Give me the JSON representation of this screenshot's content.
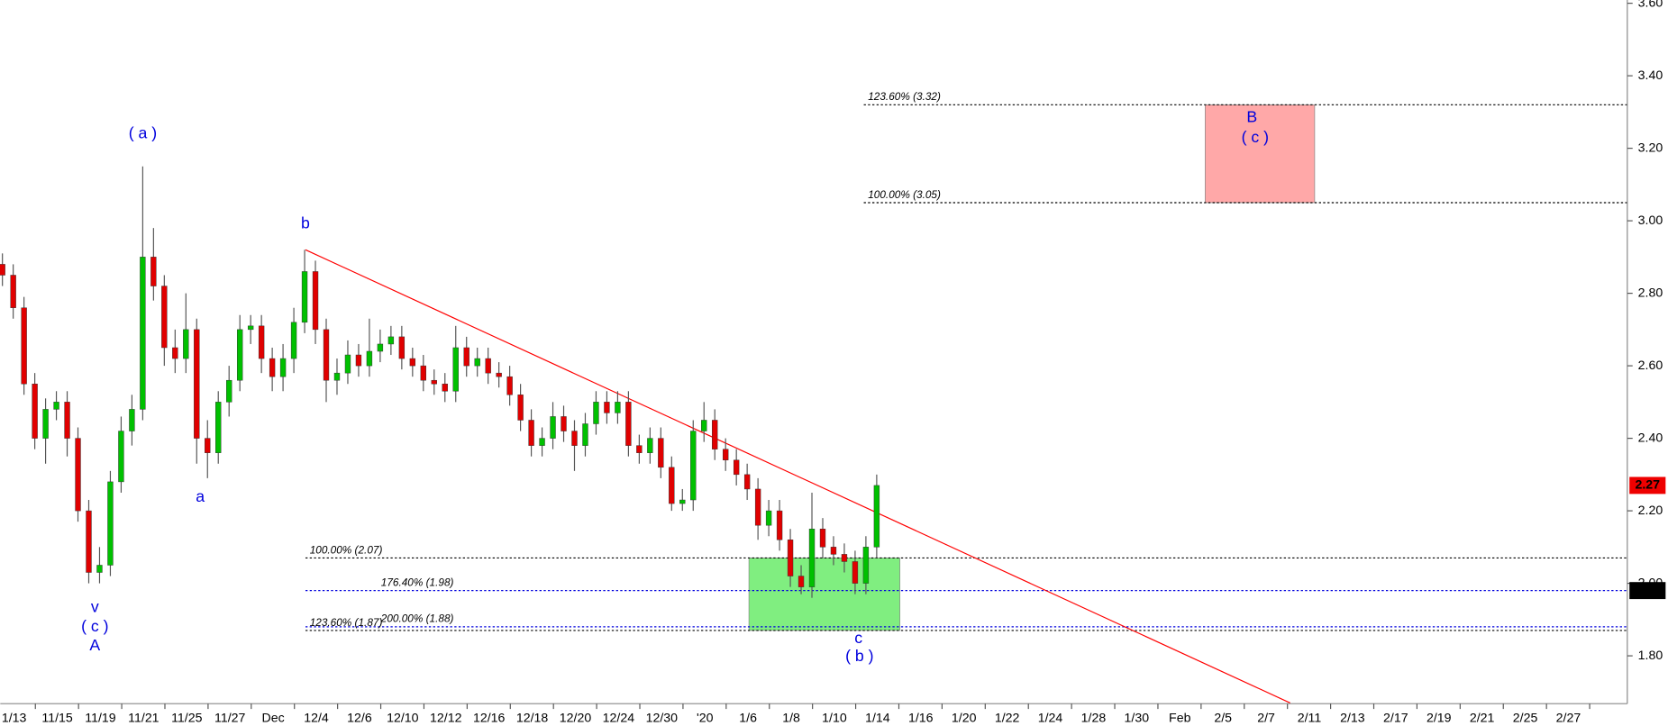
{
  "chart_data": {
    "type": "candlestick",
    "categories": [
      "1/13",
      "11/15",
      "11/19",
      "11/21",
      "11/25",
      "11/27",
      "Dec",
      "12/4",
      "12/6",
      "12/10",
      "12/12",
      "12/16",
      "12/18",
      "12/20",
      "12/24",
      "12/30",
      "'20",
      "1/6",
      "1/8",
      "1/10",
      "1/14",
      "1/16",
      "1/20",
      "1/22",
      "1/24",
      "1/28",
      "1/30",
      "Feb",
      "2/5",
      "2/7",
      "2/11",
      "2/13",
      "2/17",
      "2/19",
      "2/21",
      "2/25",
      "2/27"
    ],
    "open": [
      2.88,
      2.85,
      2.76,
      2.55,
      2.4,
      2.48,
      2.5,
      2.4,
      2.2,
      2.03,
      2.05,
      2.28,
      2.42,
      2.48,
      2.9,
      2.82,
      2.65,
      2.62,
      2.7,
      2.4,
      2.36,
      2.5,
      2.56,
      2.7,
      2.71,
      2.62,
      2.57,
      2.62,
      2.72,
      2.86,
      2.7,
      2.56,
      2.58,
      2.63,
      2.6,
      2.64,
      2.66,
      2.68,
      2.62,
      2.6,
      2.56,
      2.55,
      2.53,
      2.65,
      2.6,
      2.62,
      2.58,
      2.57,
      2.52,
      2.45,
      2.38,
      2.4,
      2.46,
      2.42,
      2.38,
      2.44,
      2.5,
      2.47,
      2.5,
      2.38,
      2.36,
      2.4,
      2.32,
      2.22,
      2.23,
      2.42,
      2.45,
      2.37,
      2.34,
      2.3,
      2.26,
      2.16,
      2.2,
      2.12,
      2.02,
      1.99,
      2.15,
      2.1,
      2.08,
      2.06,
      2.0,
      2.1
    ],
    "high": [
      2.91,
      2.88,
      2.79,
      2.58,
      2.51,
      2.53,
      2.53,
      2.43,
      2.23,
      2.1,
      2.31,
      2.46,
      2.52,
      3.15,
      2.98,
      2.85,
      2.7,
      2.8,
      2.73,
      2.45,
      2.53,
      2.6,
      2.74,
      2.74,
      2.74,
      2.65,
      2.66,
      2.76,
      2.92,
      2.89,
      2.73,
      2.62,
      2.67,
      2.66,
      2.73,
      2.7,
      2.71,
      2.71,
      2.65,
      2.63,
      2.59,
      2.58,
      2.71,
      2.68,
      2.65,
      2.65,
      2.61,
      2.6,
      2.55,
      2.48,
      2.43,
      2.5,
      2.49,
      2.45,
      2.47,
      2.53,
      2.53,
      2.53,
      2.53,
      2.41,
      2.43,
      2.43,
      2.35,
      2.26,
      2.45,
      2.5,
      2.48,
      2.4,
      2.37,
      2.33,
      2.29,
      2.23,
      2.23,
      2.15,
      2.05,
      2.25,
      2.18,
      2.13,
      2.11,
      2.09,
      2.13,
      2.3
    ],
    "low": [
      2.82,
      2.73,
      2.52,
      2.37,
      2.33,
      2.45,
      2.35,
      2.17,
      2.0,
      2.0,
      2.02,
      2.25,
      2.38,
      2.45,
      2.78,
      2.6,
      2.58,
      2.58,
      2.33,
      2.29,
      2.33,
      2.46,
      2.53,
      2.66,
      2.58,
      2.53,
      2.53,
      2.58,
      2.69,
      2.66,
      2.5,
      2.52,
      2.55,
      2.57,
      2.57,
      2.61,
      2.63,
      2.59,
      2.57,
      2.53,
      2.52,
      2.5,
      2.5,
      2.57,
      2.57,
      2.55,
      2.54,
      2.49,
      2.42,
      2.35,
      2.35,
      2.37,
      2.39,
      2.31,
      2.35,
      2.41,
      2.44,
      2.44,
      2.35,
      2.33,
      2.33,
      2.29,
      2.2,
      2.2,
      2.2,
      2.39,
      2.34,
      2.31,
      2.27,
      2.23,
      2.12,
      2.13,
      2.09,
      1.99,
      1.97,
      1.96,
      2.07,
      2.05,
      2.03,
      1.97,
      1.97,
      2.07
    ],
    "close": [
      2.85,
      2.76,
      2.55,
      2.4,
      2.48,
      2.5,
      2.4,
      2.2,
      2.03,
      2.05,
      2.28,
      2.42,
      2.48,
      2.9,
      2.82,
      2.65,
      2.62,
      2.7,
      2.4,
      2.36,
      2.5,
      2.56,
      2.7,
      2.71,
      2.62,
      2.57,
      2.62,
      2.72,
      2.86,
      2.7,
      2.56,
      2.58,
      2.63,
      2.6,
      2.64,
      2.66,
      2.68,
      2.62,
      2.6,
      2.56,
      2.55,
      2.53,
      2.65,
      2.6,
      2.62,
      2.58,
      2.57,
      2.52,
      2.45,
      2.38,
      2.4,
      2.46,
      2.42,
      2.38,
      2.44,
      2.5,
      2.47,
      2.5,
      2.38,
      2.36,
      2.4,
      2.32,
      2.22,
      2.23,
      2.42,
      2.45,
      2.37,
      2.34,
      2.3,
      2.26,
      2.16,
      2.2,
      2.12,
      2.02,
      1.99,
      2.15,
      2.1,
      2.08,
      2.06,
      2.0,
      2.1,
      2.27
    ],
    "up_color": "#00c000",
    "down_color": "#e00000",
    "ylim": [
      1.668,
      3.609
    ],
    "yticks": [
      {
        "value": 1.8,
        "label": "1.80"
      },
      {
        "value": 2.0,
        "label": "2.00"
      },
      {
        "value": 2.2,
        "label": "2.20"
      },
      {
        "value": 2.4,
        "label": "2.40"
      },
      {
        "value": 2.6,
        "label": "2.60"
      },
      {
        "value": 2.8,
        "label": "2.80"
      },
      {
        "value": 3.0,
        "label": "3.00"
      },
      {
        "value": 3.2,
        "label": "3.20"
      },
      {
        "value": 3.4,
        "label": "3.40"
      },
      {
        "value": 3.6,
        "label": "3.60"
      }
    ],
    "levels": [
      {
        "label": "123.60% (3.32)",
        "value": 3.32,
        "color": "#000000"
      },
      {
        "label": "100.00% (3.05)",
        "value": 3.05,
        "color": "#000000"
      },
      {
        "label": "100.00% (2.07)",
        "value": 2.07,
        "color": "#000000"
      },
      {
        "label": "176.40% (1.98)",
        "value": 1.98,
        "color": "#0000dd"
      },
      {
        "label": "200.00% (1.88)",
        "value": 1.88,
        "color": "#0000dd"
      },
      {
        "label": "123.60% (1.87)",
        "value": 1.87,
        "color": "#000000"
      }
    ],
    "zones": [
      {
        "bottom": 3.05,
        "top": 3.32,
        "color": "#ffa8a8"
      },
      {
        "bottom": 1.87,
        "top": 2.07,
        "color": "#80ee80"
      }
    ],
    "trendline": {
      "start": 2.92,
      "end": 1.67,
      "color": "#ff0000"
    },
    "annotations": [
      {
        "text": "( a )"
      },
      {
        "text": "b"
      },
      {
        "text": "a"
      },
      {
        "text": "v"
      },
      {
        "text": "( c )"
      },
      {
        "text": "A"
      },
      {
        "text": "c"
      },
      {
        "text": "( b )"
      },
      {
        "text": "B"
      },
      {
        "text": "( c )"
      }
    ],
    "price_tags": [
      {
        "value": 2.27,
        "color": "#ee0000"
      },
      {
        "value": 1.98,
        "color": "#000000"
      }
    ]
  }
}
